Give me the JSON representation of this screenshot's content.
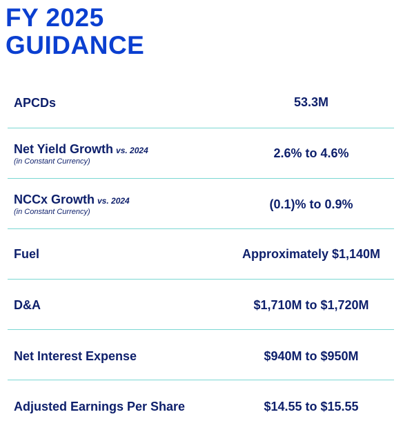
{
  "title": {
    "line1": "FY 2025",
    "line2": "GUIDANCE"
  },
  "rows": [
    {
      "label": "APCDs",
      "qualifier": "",
      "note": "",
      "value": "53.3M"
    },
    {
      "label": "Net Yield Growth",
      "qualifier": "vs. 2024",
      "note": "(in Constant Currency)",
      "value": "2.6% to 4.6%"
    },
    {
      "label": "NCCx Growth",
      "qualifier": "vs. 2024",
      "note": "(in Constant Currency)",
      "value": "(0.1)% to 0.9%"
    },
    {
      "label": "Fuel",
      "qualifier": "",
      "note": "",
      "value": "Approximately $1,140M"
    },
    {
      "label": "D&A",
      "qualifier": "",
      "note": "",
      "value": "$1,710M to $1,720M"
    },
    {
      "label": "Net Interest Expense",
      "qualifier": "",
      "note": "",
      "value": "$940M to $950M"
    },
    {
      "label": "Adjusted Earnings Per Share",
      "qualifier": "",
      "note": "",
      "value": "$14.55 to $15.55"
    }
  ]
}
